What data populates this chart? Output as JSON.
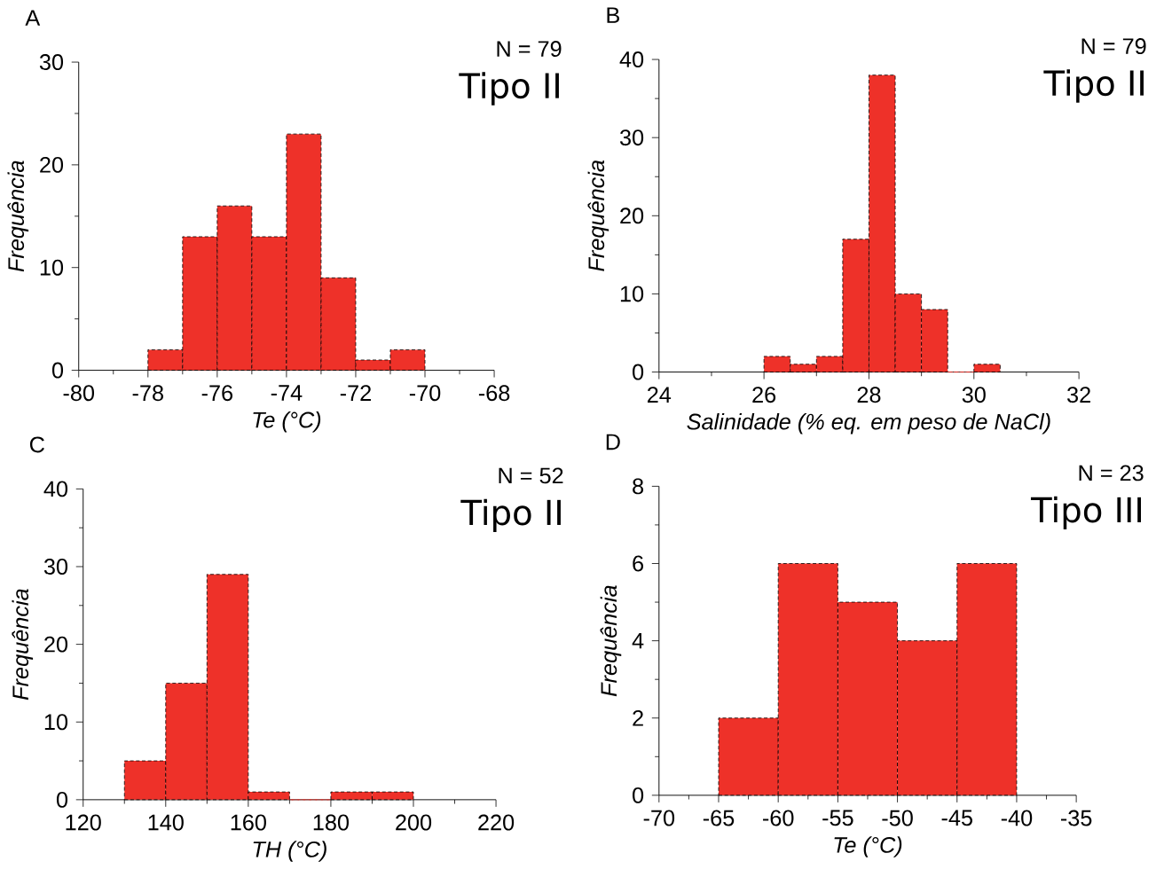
{
  "chart_data": [
    {
      "type": "histogram",
      "title": "A",
      "annotations": [
        "N = 79",
        "Tipo II"
      ],
      "xlabel": "Te (°C)",
      "ylabel": "Frequência",
      "bins": [
        -78,
        -77,
        -76,
        -75,
        -74,
        -73,
        -72,
        -71,
        -70
      ],
      "values": [
        2,
        13,
        16,
        13,
        23,
        9,
        1,
        2
      ],
      "color": "#ee3129",
      "xlim": [
        -80,
        -68
      ],
      "ylim": [
        0,
        30
      ],
      "xticks": [
        -80,
        -78,
        -76,
        -74,
        -72,
        -70,
        -68
      ],
      "yticks": [
        0,
        10,
        20,
        30
      ]
    },
    {
      "type": "histogram",
      "title": "B",
      "annotations": [
        "N = 79",
        "Tipo II"
      ],
      "xlabel": "Salinidade (% eq. em peso de NaCl)",
      "ylabel": "Frequência",
      "bins": [
        26,
        26.5,
        27,
        27.5,
        28,
        28.5,
        29,
        29.5,
        30,
        30.5
      ],
      "values": [
        2,
        1,
        2,
        17,
        38,
        10,
        8,
        0,
        1
      ],
      "color": "#ee3129",
      "xlim": [
        24,
        32
      ],
      "ylim": [
        0,
        40
      ],
      "xticks": [
        24,
        26,
        28,
        30,
        32
      ],
      "yticks": [
        0,
        10,
        20,
        30,
        40
      ]
    },
    {
      "type": "histogram",
      "title": "C",
      "annotations": [
        "N = 52",
        "Tipo II"
      ],
      "xlabel": "TH (°C)",
      "ylabel": "Frequência",
      "bins": [
        130,
        140,
        150,
        160,
        170,
        180,
        190,
        200
      ],
      "values": [
        5,
        15,
        29,
        1,
        0,
        1,
        1
      ],
      "color": "#ee3129",
      "xlim": [
        120,
        220
      ],
      "ylim": [
        0,
        40
      ],
      "xticks": [
        120,
        140,
        160,
        180,
        200,
        220
      ],
      "yticks": [
        0,
        10,
        20,
        30,
        40
      ]
    },
    {
      "type": "histogram",
      "title": "D",
      "annotations": [
        "N = 23",
        "Tipo III"
      ],
      "xlabel": "Te (°C)",
      "ylabel": "Frequência",
      "bins": [
        -65,
        -60,
        -55,
        -50,
        -45,
        -40
      ],
      "values": [
        2,
        6,
        5,
        4,
        6
      ],
      "color": "#ee3129",
      "xlim": [
        -70,
        -35
      ],
      "ylim": [
        0,
        8
      ],
      "xticks": [
        -70,
        -65,
        -60,
        -55,
        -50,
        -45,
        -40,
        -35
      ],
      "yticks": [
        0,
        2,
        4,
        6,
        8
      ]
    }
  ]
}
